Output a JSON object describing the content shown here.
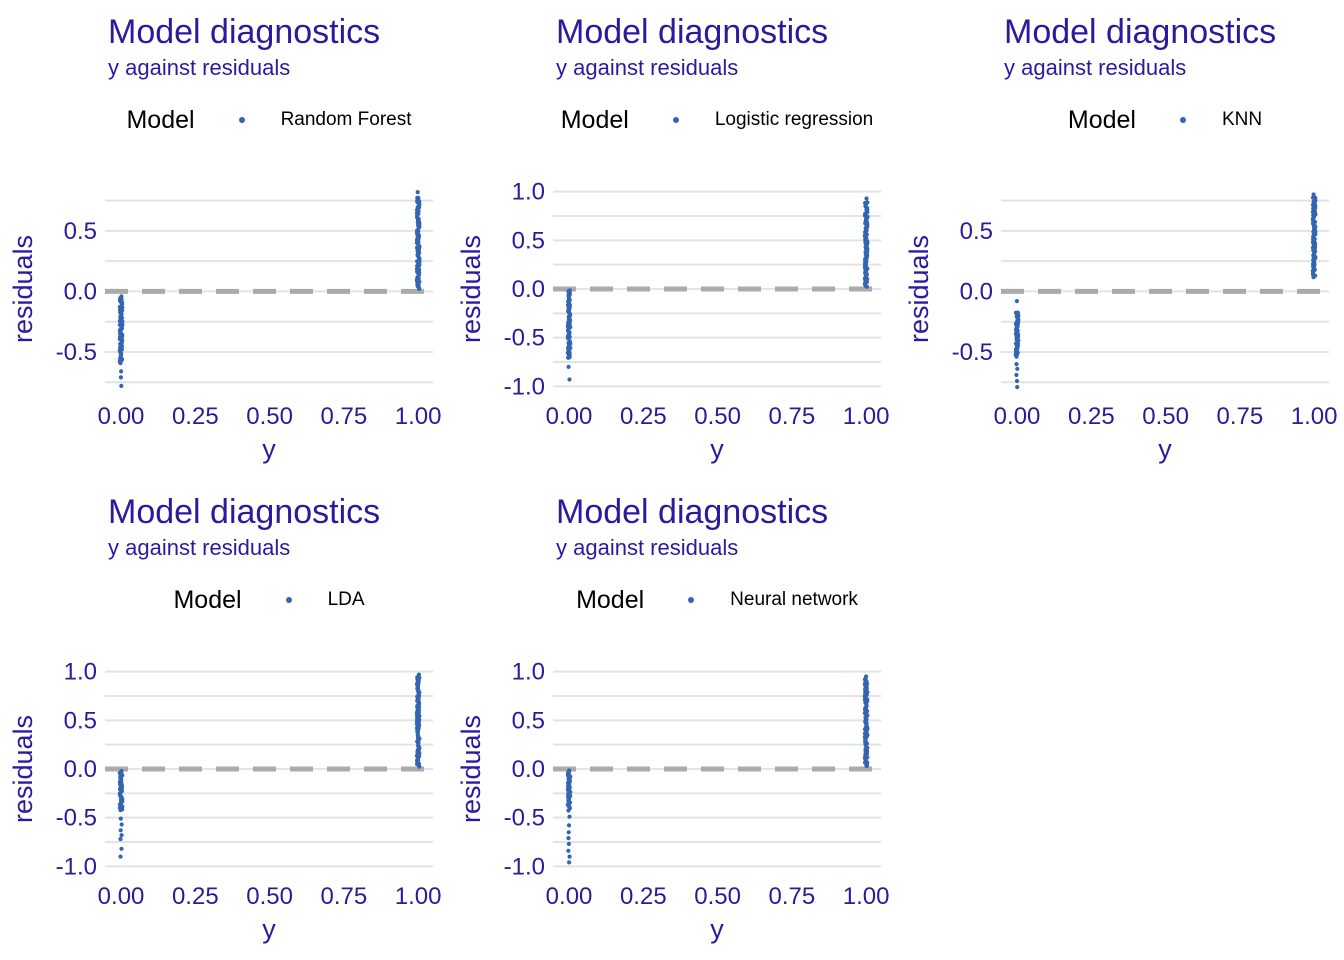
{
  "colors": {
    "background": "#ffffff",
    "title_text": "#2e199e",
    "axis_text": "#2e199e",
    "legend_text": "#000000",
    "point": "#3465b1",
    "gridline": "#e3e3e3",
    "zero_line": "#ababab"
  },
  "chart_data": [
    {
      "type": "scatter",
      "title": "Model diagnostics",
      "subtitle": "y against residuals",
      "legend": {
        "title": "Model",
        "label": "Random Forest"
      },
      "xlabel": "y",
      "ylabel": "residuals",
      "xlim": [
        -0.054,
        1.05
      ],
      "ylim": [
        -0.88,
        0.92
      ],
      "x_ticks": [
        "0.00",
        "0.25",
        "0.50",
        "0.75",
        "1.00"
      ],
      "x_tick_values": [
        0,
        0.25,
        0.5,
        0.75,
        1
      ],
      "y_ticks": [
        {
          "value": 0.5,
          "label": "0.5"
        },
        {
          "value": 0.0,
          "label": "0.0"
        },
        {
          "value": -0.5,
          "label": "-0.5"
        }
      ],
      "grid_values": [
        -0.75,
        -0.5,
        -0.25,
        0,
        0.25,
        0.5,
        0.75
      ],
      "zero_line_y": 0,
      "clusters": [
        {
          "x": 0,
          "dense": [
            -0.6,
            -0.05
          ],
          "outliers": [
            -0.66,
            -0.71,
            -0.78
          ]
        },
        {
          "x": 1,
          "dense": [
            0.03,
            0.78
          ],
          "outliers": [
            0.82
          ]
        }
      ]
    },
    {
      "type": "scatter",
      "title": "Model diagnostics",
      "subtitle": "y against residuals",
      "legend": {
        "title": "Model",
        "label": "Logistic regression"
      },
      "xlabel": "y",
      "ylabel": "residuals",
      "xlim": [
        -0.054,
        1.05
      ],
      "ylim": [
        -1.12,
        1.12
      ],
      "x_ticks": [
        "0.00",
        "0.25",
        "0.50",
        "0.75",
        "1.00"
      ],
      "x_tick_values": [
        0,
        0.25,
        0.5,
        0.75,
        1
      ],
      "y_ticks": [
        {
          "value": 1.0,
          "label": "1.0"
        },
        {
          "value": 0.5,
          "label": "0.5"
        },
        {
          "value": 0.0,
          "label": "0.0"
        },
        {
          "value": -0.5,
          "label": "-0.5"
        },
        {
          "value": -1.0,
          "label": "-1.0"
        }
      ],
      "grid_values": [
        -1,
        -0.75,
        -0.5,
        -0.25,
        0,
        0.25,
        0.5,
        0.75,
        1
      ],
      "zero_line_y": 0,
      "clusters": [
        {
          "x": 0,
          "dense": [
            -0.71,
            -0.02
          ],
          "outliers": [
            -0.8,
            -0.93
          ]
        },
        {
          "x": 1,
          "dense": [
            0.03,
            0.9
          ],
          "outliers": [
            0.93
          ]
        }
      ]
    },
    {
      "type": "scatter",
      "title": "Model diagnostics",
      "subtitle": "y against residuals",
      "legend": {
        "title": "Model",
        "label": "KNN"
      },
      "xlabel": "y",
      "ylabel": "residuals",
      "xlim": [
        -0.054,
        1.05
      ],
      "ylim": [
        -0.88,
        0.92
      ],
      "x_ticks": [
        "0.00",
        "0.25",
        "0.50",
        "0.75",
        "1.00"
      ],
      "x_tick_values": [
        0,
        0.25,
        0.5,
        0.75,
        1
      ],
      "y_ticks": [
        {
          "value": 0.5,
          "label": "0.5"
        },
        {
          "value": 0.0,
          "label": "0.0"
        },
        {
          "value": -0.5,
          "label": "-0.5"
        }
      ],
      "grid_values": [
        -0.75,
        -0.5,
        -0.25,
        0,
        0.25,
        0.5,
        0.75
      ],
      "zero_line_y": 0,
      "clusters": [
        {
          "x": 0,
          "dense": [
            -0.54,
            -0.17
          ],
          "outliers": [
            -0.08,
            -0.6,
            -0.64,
            -0.69,
            -0.74,
            -0.79
          ]
        },
        {
          "x": 1,
          "dense": [
            0.12,
            0.78
          ],
          "outliers": [
            0.8
          ]
        }
      ]
    },
    {
      "type": "scatter",
      "title": "Model diagnostics",
      "subtitle": "y against residuals",
      "legend": {
        "title": "Model",
        "label": "LDA"
      },
      "xlabel": "y",
      "ylabel": "residuals",
      "xlim": [
        -0.054,
        1.05
      ],
      "ylim": [
        -1.12,
        1.12
      ],
      "x_ticks": [
        "0.00",
        "0.25",
        "0.50",
        "0.75",
        "1.00"
      ],
      "x_tick_values": [
        0,
        0.25,
        0.5,
        0.75,
        1
      ],
      "y_ticks": [
        {
          "value": 1.0,
          "label": "1.0"
        },
        {
          "value": 0.5,
          "label": "0.5"
        },
        {
          "value": 0.0,
          "label": "0.0"
        },
        {
          "value": -0.5,
          "label": "-0.5"
        },
        {
          "value": -1.0,
          "label": "-1.0"
        }
      ],
      "grid_values": [
        -1,
        -0.75,
        -0.5,
        -0.25,
        0,
        0.25,
        0.5,
        0.75,
        1
      ],
      "zero_line_y": 0,
      "clusters": [
        {
          "x": 0,
          "dense": [
            -0.42,
            -0.02
          ],
          "outliers": [
            -0.51,
            -0.57,
            -0.63,
            -0.68,
            -0.72,
            -0.82,
            -0.9
          ]
        },
        {
          "x": 1,
          "dense": [
            0.03,
            0.95
          ],
          "outliers": [
            0.97
          ]
        }
      ]
    },
    {
      "type": "scatter",
      "title": "Model diagnostics",
      "subtitle": "y against residuals",
      "legend": {
        "title": "Model",
        "label": "Neural network"
      },
      "xlabel": "y",
      "ylabel": "residuals",
      "xlim": [
        -0.054,
        1.05
      ],
      "ylim": [
        -1.12,
        1.12
      ],
      "x_ticks": [
        "0.00",
        "0.25",
        "0.50",
        "0.75",
        "1.00"
      ],
      "x_tick_values": [
        0,
        0.25,
        0.5,
        0.75,
        1
      ],
      "y_ticks": [
        {
          "value": 1.0,
          "label": "1.0"
        },
        {
          "value": 0.5,
          "label": "0.5"
        },
        {
          "value": 0.0,
          "label": "0.0"
        },
        {
          "value": -0.5,
          "label": "-0.5"
        },
        {
          "value": -1.0,
          "label": "-1.0"
        }
      ],
      "grid_values": [
        -1,
        -0.75,
        -0.5,
        -0.25,
        0,
        0.25,
        0.5,
        0.75,
        1
      ],
      "zero_line_y": 0,
      "clusters": [
        {
          "x": 0,
          "dense": [
            -0.42,
            -0.02
          ],
          "outliers": [
            -0.49,
            -0.58,
            -0.65,
            -0.71,
            -0.77,
            -0.84,
            -0.9,
            -0.96
          ]
        },
        {
          "x": 1,
          "dense": [
            0.03,
            0.93
          ],
          "outliers": [
            0.95
          ]
        }
      ]
    }
  ]
}
